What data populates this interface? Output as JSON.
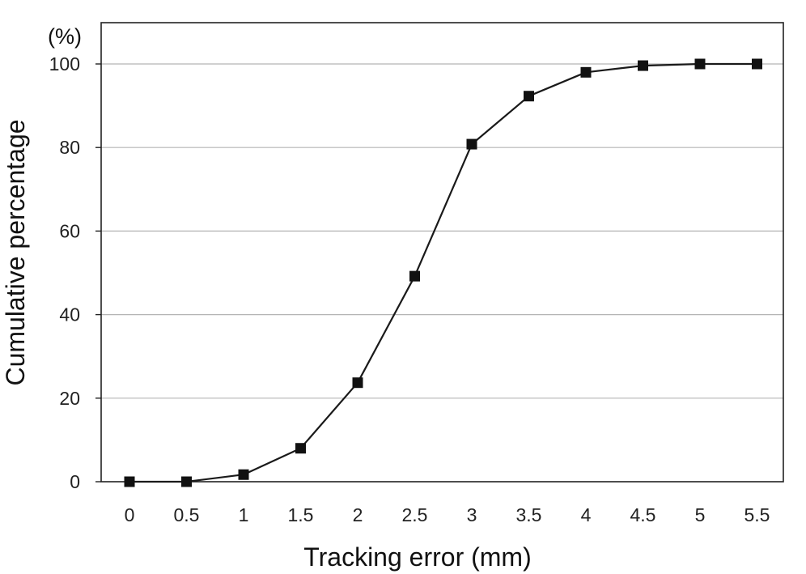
{
  "chart_data": {
    "type": "line",
    "xlabel": "Tracking error (mm)",
    "ylabel": "Cumulative percentage",
    "yunit": "(%)",
    "x": [
      0,
      0.5,
      1,
      1.5,
      2,
      2.5,
      3,
      3.5,
      4,
      4.5,
      5,
      5.5
    ],
    "x_tick_labels": [
      "0",
      "0.5",
      "1",
      "1.5",
      "2",
      "2.5",
      "3",
      "3.5",
      "4",
      "4.5",
      "5",
      "5.5"
    ],
    "y_ticks": [
      0,
      20,
      40,
      60,
      80,
      100
    ],
    "y_tick_labels": [
      "0",
      "20",
      "40",
      "60",
      "80",
      "100"
    ],
    "ylim": [
      0,
      110
    ],
    "grid": "horizontal",
    "marker": "square",
    "series": [
      {
        "values": [
          0,
          0,
          1.7,
          8,
          23.7,
          49.2,
          80.8,
          92.3,
          98,
          99.6,
          100,
          100
        ]
      }
    ],
    "colors": {
      "line": "#1a1a1a",
      "marker": "#111111",
      "grid": "#b5b5b5",
      "frame": "#222222"
    }
  }
}
